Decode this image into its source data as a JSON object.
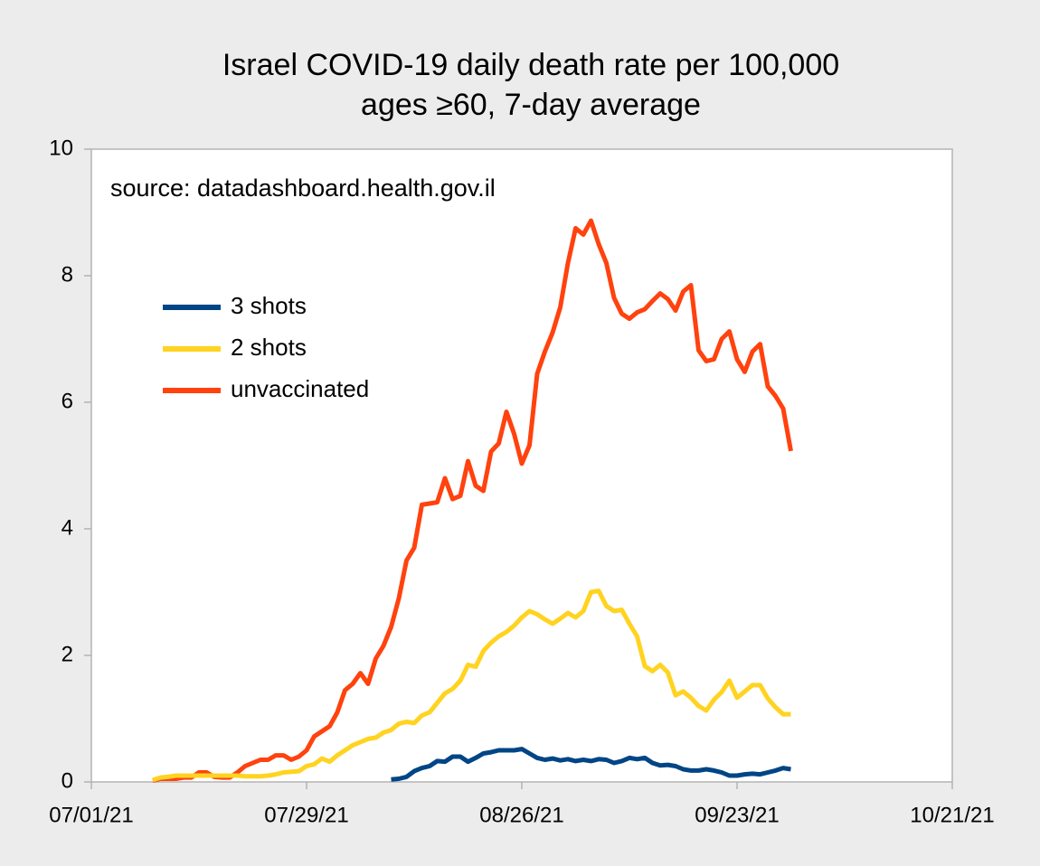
{
  "chart_data": {
    "type": "line",
    "title": "Israel COVID-19 daily death rate per 100,000",
    "subtitle": "ages ≥60, 7-day average",
    "annotation": "source: datadashboard.health.gov.il",
    "x": [
      "07/09/21",
      "07/10/21",
      "07/11/21",
      "07/12/21",
      "07/13/21",
      "07/14/21",
      "07/15/21",
      "07/16/21",
      "07/17/21",
      "07/18/21",
      "07/19/21",
      "07/20/21",
      "07/21/21",
      "07/22/21",
      "07/23/21",
      "07/24/21",
      "07/25/21",
      "07/26/21",
      "07/27/21",
      "07/28/21",
      "07/29/21",
      "07/30/21",
      "07/31/21",
      "08/01/21",
      "08/02/21",
      "08/03/21",
      "08/04/21",
      "08/05/21",
      "08/06/21",
      "08/07/21",
      "08/08/21",
      "08/09/21",
      "08/10/21",
      "08/11/21",
      "08/12/21",
      "08/13/21",
      "08/14/21",
      "08/15/21",
      "08/16/21",
      "08/17/21",
      "08/18/21",
      "08/19/21",
      "08/20/21",
      "08/21/21",
      "08/22/21",
      "08/23/21",
      "08/24/21",
      "08/25/21",
      "08/26/21",
      "08/27/21",
      "08/28/21",
      "08/29/21",
      "08/30/21",
      "08/31/21",
      "09/01/21",
      "09/02/21",
      "09/03/21",
      "09/04/21",
      "09/05/21",
      "09/06/21",
      "09/07/21",
      "09/08/21",
      "09/09/21",
      "09/10/21",
      "09/11/21",
      "09/12/21",
      "09/13/21",
      "09/14/21",
      "09/15/21",
      "09/16/21",
      "09/17/21",
      "09/18/21",
      "09/19/21",
      "09/20/21",
      "09/21/21",
      "09/22/21",
      "09/23/21",
      "09/24/21",
      "09/25/21",
      "09/26/21",
      "09/27/21",
      "09/28/21",
      "09/29/21",
      "09/30/21"
    ],
    "series": [
      {
        "name": "3 shots",
        "color": "#004586",
        "values": [
          null,
          null,
          null,
          null,
          null,
          null,
          null,
          null,
          null,
          null,
          null,
          null,
          null,
          null,
          null,
          null,
          null,
          null,
          null,
          null,
          null,
          null,
          null,
          null,
          null,
          null,
          null,
          null,
          null,
          null,
          null,
          0.04,
          0.05,
          0.08,
          0.17,
          0.22,
          0.25,
          0.33,
          0.32,
          0.4,
          0.4,
          0.32,
          0.38,
          0.45,
          0.47,
          0.5,
          0.5,
          0.5,
          0.52,
          0.45,
          0.38,
          0.35,
          0.37,
          0.34,
          0.36,
          0.33,
          0.35,
          0.33,
          0.36,
          0.35,
          0.3,
          0.33,
          0.38,
          0.36,
          0.38,
          0.3,
          0.26,
          0.27,
          0.25,
          0.2,
          0.18,
          0.18,
          0.2,
          0.18,
          0.15,
          0.1,
          0.1,
          0.12,
          0.13,
          0.12,
          0.15,
          0.18,
          0.22,
          0.2
        ]
      },
      {
        "name": "2 shots",
        "color": "#ffd320",
        "values": [
          0.03,
          0.07,
          0.08,
          0.1,
          0.1,
          0.1,
          0.1,
          0.1,
          0.1,
          0.1,
          0.1,
          0.1,
          0.09,
          0.09,
          0.09,
          0.1,
          0.12,
          0.15,
          0.16,
          0.17,
          0.25,
          0.28,
          0.37,
          0.32,
          0.42,
          0.5,
          0.58,
          0.63,
          0.68,
          0.7,
          0.78,
          0.82,
          0.92,
          0.95,
          0.93,
          1.05,
          1.1,
          1.25,
          1.4,
          1.47,
          1.6,
          1.85,
          1.82,
          2.07,
          2.2,
          2.3,
          2.37,
          2.47,
          2.6,
          2.7,
          2.65,
          2.57,
          2.5,
          2.58,
          2.67,
          2.6,
          2.7,
          3.0,
          3.02,
          2.78,
          2.7,
          2.72,
          2.5,
          2.3,
          1.83,
          1.75,
          1.85,
          1.73,
          1.37,
          1.43,
          1.33,
          1.2,
          1.13,
          1.3,
          1.42,
          1.6,
          1.33,
          1.43,
          1.53,
          1.53,
          1.32,
          1.18,
          1.07,
          1.07
        ]
      },
      {
        "name": "unvaccinated",
        "color": "#ff420e",
        "values": [
          0.02,
          0.05,
          0.05,
          0.05,
          0.07,
          0.07,
          0.15,
          0.15,
          0.08,
          0.07,
          0.07,
          0.15,
          0.25,
          0.3,
          0.35,
          0.35,
          0.42,
          0.42,
          0.35,
          0.4,
          0.5,
          0.72,
          0.8,
          0.88,
          1.1,
          1.45,
          1.55,
          1.72,
          1.55,
          1.95,
          2.15,
          2.45,
          2.9,
          3.5,
          3.7,
          4.38,
          4.4,
          4.42,
          4.8,
          4.47,
          4.52,
          5.07,
          4.68,
          4.6,
          5.22,
          5.35,
          5.85,
          5.5,
          5.03,
          5.32,
          6.45,
          6.8,
          7.1,
          7.5,
          8.2,
          8.75,
          8.65,
          8.87,
          8.5,
          8.2,
          7.65,
          7.4,
          7.32,
          7.42,
          7.47,
          7.6,
          7.72,
          7.63,
          7.45,
          7.75,
          7.85,
          6.82,
          6.65,
          6.68,
          7.0,
          7.12,
          6.68,
          6.48,
          6.8,
          6.92,
          6.25,
          6.1,
          5.9,
          5.23
        ]
      }
    ],
    "xlim": [
      "07/01/21",
      "10/21/21"
    ],
    "xticks": [
      "07/01/21",
      "07/29/21",
      "08/26/21",
      "09/23/21",
      "10/21/21"
    ],
    "ylim": [
      0,
      10
    ],
    "yticks": [
      0,
      2,
      4,
      6,
      8,
      10
    ],
    "grid": false,
    "legend": "upper left"
  }
}
